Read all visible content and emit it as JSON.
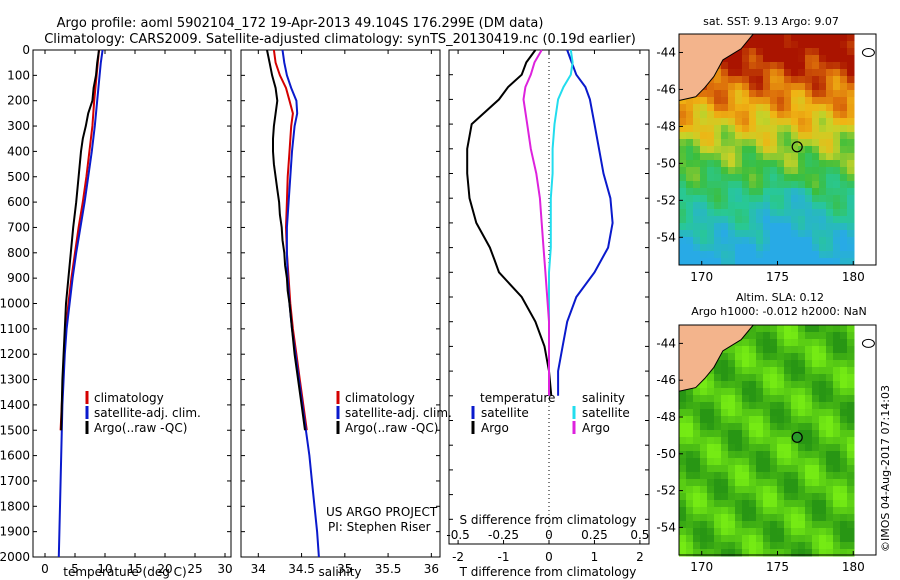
{
  "header": {
    "line1": "Argo profile: aoml 5902104_172 19-Apr-2013 49.104S 176.299E (DM data)",
    "line2": "Climatology: CARS2009. Satellite-adjusted climatology: synTS_20130419.nc (0.19d earlier)"
  },
  "colors": {
    "climatology": "#d40000",
    "satellite": "#0a1acc",
    "argo": "#000000",
    "sal_sat": "#22ddee",
    "sal_argo": "#dd22dd",
    "land": "#f3b48c"
  },
  "chart_data": [
    {
      "type": "line",
      "id": "temperature",
      "xlabel": "temperature (deg C)",
      "ylabel": "",
      "xlim": [
        -2,
        31
      ],
      "ylim": [
        2000,
        0
      ],
      "xticks": [
        0,
        5,
        10,
        15,
        20,
        25,
        30
      ],
      "yticks": [
        0,
        100,
        200,
        300,
        400,
        500,
        600,
        700,
        800,
        900,
        1000,
        1100,
        1200,
        1300,
        1400,
        1500,
        1600,
        1700,
        1800,
        1900,
        2000
      ],
      "legend": [
        "climatology",
        "satellite-adj. clim.",
        "Argo(..raw -QC)"
      ],
      "series": [
        {
          "name": "climatology",
          "depth": [
            0,
            50,
            100,
            150,
            200,
            300,
            400,
            500,
            600,
            700,
            800,
            900,
            1000,
            1100,
            1200,
            1300,
            1400,
            1500
          ],
          "values": [
            9.0,
            8.8,
            8.6,
            8.4,
            8.2,
            7.9,
            7.4,
            6.9,
            6.3,
            5.6,
            5.0,
            4.4,
            3.9,
            3.5,
            3.2,
            3.0,
            2.8,
            2.6
          ]
        },
        {
          "name": "satellite-adj. clim.",
          "depth": [
            0,
            50,
            100,
            150,
            200,
            300,
            400,
            500,
            600,
            700,
            800,
            900,
            1000,
            1100,
            1200,
            1300,
            1400,
            1500,
            1600,
            1700,
            1800,
            1900,
            2000
          ],
          "values": [
            9.6,
            9.3,
            9.1,
            8.9,
            8.7,
            8.3,
            7.8,
            7.2,
            6.6,
            5.9,
            5.2,
            4.6,
            4.1,
            3.6,
            3.3,
            3.1,
            2.9,
            2.8,
            2.7,
            2.6,
            2.5,
            2.4,
            2.3
          ]
        },
        {
          "name": "Argo(..raw -QC)",
          "depth": [
            0,
            50,
            100,
            150,
            200,
            250,
            300,
            350,
            400,
            500,
            600,
            700,
            800,
            900,
            1000,
            1100,
            1200,
            1300,
            1400,
            1500
          ],
          "values": [
            9.0,
            8.7,
            8.5,
            8.1,
            7.9,
            7.2,
            6.8,
            6.3,
            6.0,
            5.6,
            5.2,
            4.7,
            4.3,
            3.9,
            3.5,
            3.3,
            3.1,
            2.9,
            2.8,
            2.7
          ]
        }
      ]
    },
    {
      "type": "line",
      "id": "salinity",
      "xlabel": "salinity",
      "xlim": [
        33.8,
        36.1
      ],
      "ylim": [
        2000,
        0
      ],
      "xticks": [
        34,
        34.5,
        35,
        35.5,
        36
      ],
      "xticklabels": [
        "34",
        "34.5",
        "35",
        "35.5",
        "36"
      ],
      "legend": [
        "climatology",
        "satellite-adj. clim.",
        "Argo(..raw -QC)"
      ],
      "series": [
        {
          "name": "climatology",
          "depth": [
            0,
            50,
            100,
            150,
            200,
            250,
            300,
            400,
            500,
            600,
            700,
            800,
            900,
            1000,
            1100,
            1200,
            1300,
            1400,
            1500
          ],
          "values": [
            34.18,
            34.2,
            34.25,
            34.32,
            34.36,
            34.4,
            34.38,
            34.36,
            34.34,
            34.33,
            34.32,
            34.33,
            34.35,
            34.37,
            34.4,
            34.44,
            34.48,
            34.52,
            34.56
          ]
        },
        {
          "name": "satellite-adj. clim.",
          "depth": [
            0,
            50,
            100,
            150,
            200,
            250,
            300,
            400,
            500,
            600,
            700,
            800,
            900,
            1000,
            1100,
            1200,
            1300,
            1400,
            1500,
            1600,
            1700,
            1800,
            1900,
            2000
          ],
          "values": [
            34.28,
            34.3,
            34.33,
            34.38,
            34.44,
            34.45,
            34.42,
            34.39,
            34.37,
            34.35,
            34.33,
            34.33,
            34.34,
            34.36,
            34.39,
            34.43,
            34.47,
            34.51,
            34.55,
            34.59,
            34.62,
            34.65,
            34.68,
            34.7
          ]
        },
        {
          "name": "Argo(..raw -QC)",
          "depth": [
            0,
            50,
            100,
            150,
            200,
            250,
            300,
            350,
            400,
            450,
            500,
            550,
            600,
            650,
            700,
            750,
            800,
            850,
            900,
            950,
            1000,
            1100,
            1200,
            1300,
            1400,
            1500
          ],
          "values": [
            34.1,
            34.13,
            34.16,
            34.2,
            34.22,
            34.2,
            34.18,
            34.17,
            34.17,
            34.18,
            34.2,
            34.22,
            34.24,
            34.25,
            34.27,
            34.28,
            34.3,
            34.31,
            34.33,
            34.34,
            34.36,
            34.39,
            34.42,
            34.46,
            34.5,
            34.54
          ]
        }
      ],
      "annotation": [
        "US ARGO PROJECT",
        "PI: Stephen Riser"
      ]
    },
    {
      "type": "line",
      "id": "difference",
      "xlabel": "T difference from climatology",
      "xlabel_top": "S difference from climatology",
      "xlim": [
        -2.2,
        2.2
      ],
      "ylim": [
        2000,
        0
      ],
      "xticks": [
        -2,
        -1,
        0,
        1,
        2
      ],
      "xticks_s": [
        "-0.5",
        "-0.25",
        "0",
        "0.25",
        "0.5"
      ],
      "legend": {
        "temperature_title": "temperature",
        "salinity_title": "salinity",
        "items": [
          [
            "satellite",
            "Argo"
          ],
          [
            "satellite",
            "Argo"
          ]
        ]
      },
      "series": [
        {
          "name": "temperature satellite",
          "depth": [
            0,
            50,
            100,
            150,
            200,
            300,
            400,
            500,
            600,
            700,
            800,
            900,
            1000,
            1100,
            1200,
            1300,
            1400
          ],
          "values": [
            0.4,
            0.5,
            0.6,
            0.8,
            0.9,
            1.0,
            1.1,
            1.2,
            1.35,
            1.4,
            1.3,
            1.0,
            0.6,
            0.4,
            0.3,
            0.2,
            0.2
          ]
        },
        {
          "name": "temperature Argo",
          "depth": [
            0,
            50,
            100,
            150,
            200,
            300,
            400,
            500,
            600,
            700,
            800,
            850,
            900,
            1000,
            1100,
            1200,
            1300,
            1400
          ],
          "values": [
            -0.3,
            -0.5,
            -0.6,
            -0.9,
            -1.1,
            -1.7,
            -1.8,
            -1.8,
            -1.75,
            -1.6,
            -1.3,
            -1.2,
            -1.1,
            -0.6,
            -0.3,
            -0.1,
            0.0,
            0.05
          ]
        },
        {
          "name": "salinity satellite",
          "depth": [
            0,
            50,
            100,
            150,
            200,
            300,
            400,
            500,
            600,
            700,
            800,
            900,
            1000,
            1100,
            1200,
            1300,
            1400
          ],
          "values": [
            0.12,
            0.13,
            0.12,
            0.08,
            0.05,
            0.03,
            0.02,
            0.02,
            0.01,
            0.01,
            0.01,
            0.0,
            0.0,
            0.0,
            0.0,
            0.0,
            0.0
          ]
        },
        {
          "name": "salinity Argo",
          "depth": [
            0,
            50,
            100,
            150,
            200,
            300,
            400,
            500,
            600,
            700,
            800,
            900,
            1000,
            1100,
            1200,
            1300,
            1400
          ],
          "values": [
            -0.04,
            -0.08,
            -0.1,
            -0.13,
            -0.14,
            -0.12,
            -0.1,
            -0.07,
            -0.05,
            -0.04,
            -0.03,
            -0.02,
            -0.01,
            0.0,
            0.0,
            0.0,
            0.0
          ]
        }
      ]
    },
    {
      "type": "heatmap",
      "id": "sst-map",
      "title": "sat. SST: 9.13  Argo: 9.07",
      "xlim": [
        168.5,
        181.5
      ],
      "ylim": [
        -55.5,
        -43
      ],
      "xticks": [
        170,
        175,
        180
      ],
      "yticks": [
        -44,
        -46,
        -48,
        -50,
        -52,
        -54
      ],
      "profile_point": [
        176.299,
        -49.104
      ]
    },
    {
      "type": "heatmap",
      "id": "sla-map",
      "title_line1": "Altim. SLA: 0.12",
      "title_line2": "Argo h1000: -0.012 h2000: NaN",
      "xlim": [
        168.5,
        181.5
      ],
      "ylim": [
        -55.5,
        -43
      ],
      "xticks": [
        170,
        175,
        180
      ],
      "yticks": [
        -44,
        -46,
        -48,
        -50,
        -52,
        -54
      ],
      "profile_point": [
        176.299,
        -49.104
      ]
    }
  ],
  "credit": "©IMOS 04-Aug-2017 07:14:03"
}
